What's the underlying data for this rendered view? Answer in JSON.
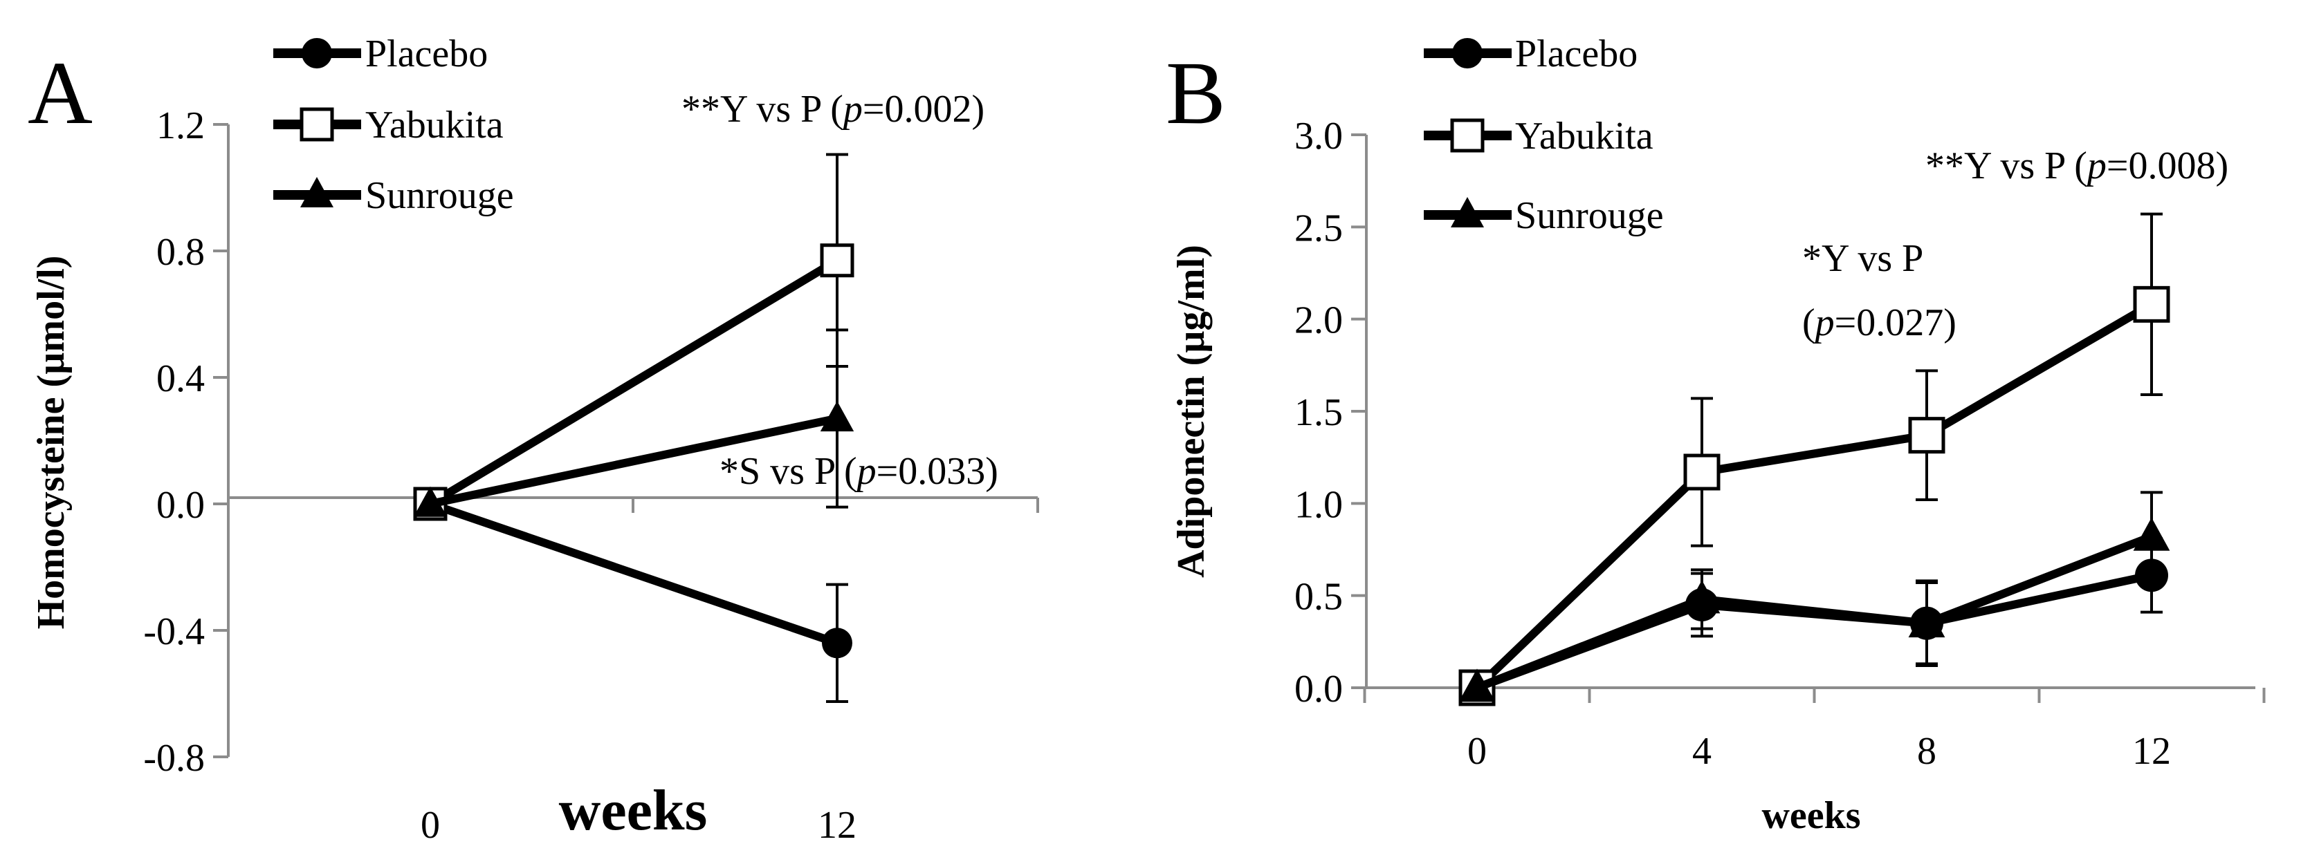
{
  "chart_data": [
    {
      "type": "line",
      "panel_label": "A",
      "title": "",
      "xlabel": "weeks",
      "ylabel": "Homocysteine (µmol/l)",
      "x": [
        0,
        12
      ],
      "x_tick_labels": [
        "0",
        "12"
      ],
      "ylim": [
        -0.8,
        1.2
      ],
      "y_ticks": [
        -0.8,
        -0.4,
        0.0,
        0.4,
        0.8,
        1.2
      ],
      "y_tick_labels": [
        "-0.8",
        "-0.4",
        "0.0",
        "0.4",
        "0.8",
        "1.2"
      ],
      "grid": false,
      "legend_position": "top-left",
      "series": [
        {
          "name": "Placebo",
          "marker": "circle",
          "values": [
            0.0,
            -0.44
          ],
          "error": [
            0.0,
            0.185
          ]
        },
        {
          "name": "Yabukita",
          "marker": "square",
          "values": [
            0.0,
            0.77
          ],
          "error": [
            0.0,
            0.335
          ]
        },
        {
          "name": "Sunrouge",
          "marker": "triangle",
          "values": [
            0.0,
            0.27
          ],
          "error": [
            0.0,
            0.28
          ]
        }
      ],
      "annotations": [
        {
          "prefix": "**Y vs P (",
          "p": "p",
          "rest": "=0.002)"
        },
        {
          "prefix": "*S vs P (",
          "p": "p",
          "rest": "=0.033)"
        }
      ]
    },
    {
      "type": "line",
      "panel_label": "B",
      "title": "",
      "xlabel": "weeks",
      "ylabel": "Adiponectin (µg/ml)",
      "x": [
        0,
        4,
        8,
        12
      ],
      "x_tick_labels": [
        "0",
        "4",
        "8",
        "12"
      ],
      "ylim": [
        0.0,
        3.0
      ],
      "y_ticks": [
        0.0,
        0.5,
        1.0,
        1.5,
        2.0,
        2.5,
        3.0
      ],
      "y_tick_labels": [
        "0.0",
        "0.5",
        "1.0",
        "1.5",
        "2.0",
        "2.5",
        "3.0"
      ],
      "grid": false,
      "legend_position": "top-left",
      "series": [
        {
          "name": "Placebo",
          "marker": "circle",
          "values": [
            0.0,
            0.45,
            0.35,
            0.61
          ],
          "error": [
            0.0,
            0.17,
            0.23,
            0.2
          ]
        },
        {
          "name": "Yabukita",
          "marker": "square",
          "values": [
            0.0,
            1.17,
            1.37,
            2.08
          ],
          "error": [
            0.0,
            0.4,
            0.35,
            0.49
          ]
        },
        {
          "name": "Sunrouge",
          "marker": "triangle",
          "values": [
            0.0,
            0.48,
            0.35,
            0.82
          ],
          "error": [
            0.0,
            0.16,
            0.22,
            0.24
          ]
        }
      ],
      "annotations": [
        {
          "prefix": "*Y vs P",
          "p": "",
          "rest": ""
        },
        {
          "prefix": "(",
          "p": "p",
          "rest": "=0.027)"
        },
        {
          "prefix": "**Y vs P (",
          "p": "p",
          "rest": "=0.008)"
        }
      ]
    }
  ]
}
